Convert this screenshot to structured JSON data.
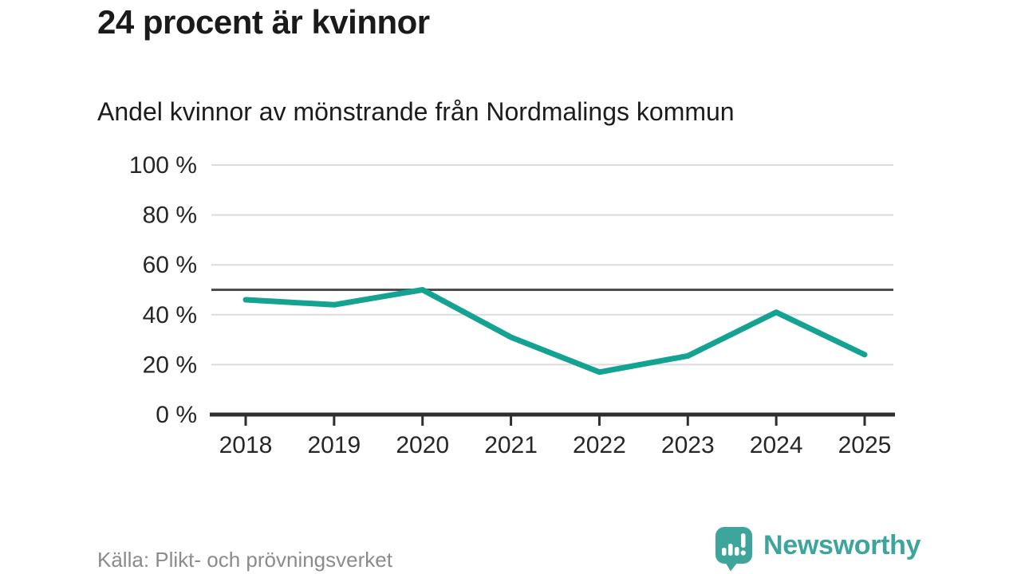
{
  "chart_data": {
    "type": "line",
    "title": "24 procent är kvinnor",
    "subtitle": "Andel kvinnor av mönstrande från Nordmalings kommun",
    "x": [
      2018,
      2019,
      2020,
      2021,
      2022,
      2023,
      2024,
      2025
    ],
    "series": [
      {
        "name": "Andel kvinnor av mönstrande",
        "values": [
          46,
          44,
          50,
          31,
          17,
          23.5,
          41,
          24
        ]
      }
    ],
    "unit": "%",
    "ylim": [
      0,
      100
    ],
    "yticks": [
      0,
      20,
      40,
      60,
      80,
      100
    ],
    "ytick_suffix": " %",
    "reference_line": 50,
    "grid": "horizontal",
    "legend": "none",
    "colors": {
      "line": "#14a392",
      "reference": "#4d4d4d",
      "grid": "#dcdcdc",
      "axis": "#2e2e2e",
      "tick_text": "#262626"
    }
  },
  "footer": {
    "source": "Källa: Plikt- och prövningsverket",
    "brand": "Newsworthy",
    "brand_color": "#3da59b"
  }
}
